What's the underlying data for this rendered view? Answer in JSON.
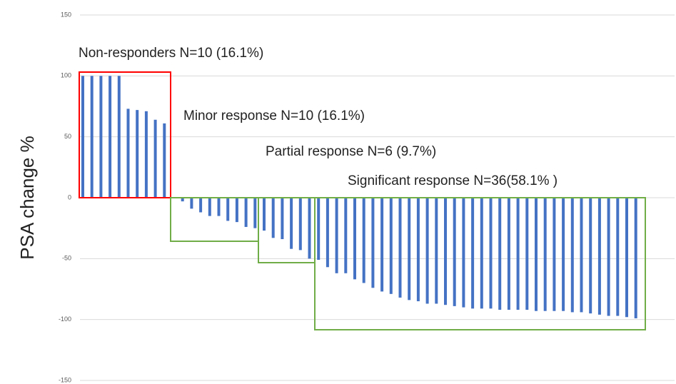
{
  "chart_data": {
    "type": "bar",
    "y_label": "PSA change %",
    "values": [
      100,
      100,
      100,
      100,
      100,
      73,
      72,
      71,
      64,
      61,
      0,
      -3,
      -9,
      -12,
      -15,
      -15,
      -19,
      -20,
      -24,
      -25,
      -27,
      -33,
      -34,
      -42,
      -43,
      -50,
      -51,
      -57,
      -62,
      -62,
      -67,
      -70,
      -74,
      -77,
      -79,
      -82,
      -84,
      -85,
      -87,
      -87,
      -88,
      -89,
      -90,
      -91,
      -91,
      -91,
      -92,
      -92,
      -92,
      -92,
      -93,
      -93,
      -93,
      -93,
      -94,
      -94,
      -95,
      -96,
      -97,
      -97,
      -98,
      -99
    ],
    "color": "#4472c4",
    "ylim": [
      -150,
      150
    ],
    "yticks": [
      -150,
      -100,
      -50,
      0,
      50,
      100,
      150
    ],
    "grid": true,
    "annotations": [
      {
        "text": "Non-responders N=10 (16.1%)",
        "color": "#ff0000"
      },
      {
        "text": "Minor response N=10 (16.1%)",
        "color": "#70ad47"
      },
      {
        "text": "Partial response N=6 (9.7%)",
        "color": "#70ad47"
      },
      {
        "text": "Significant response N=36(58.1% )",
        "color": "#70ad47"
      }
    ]
  }
}
